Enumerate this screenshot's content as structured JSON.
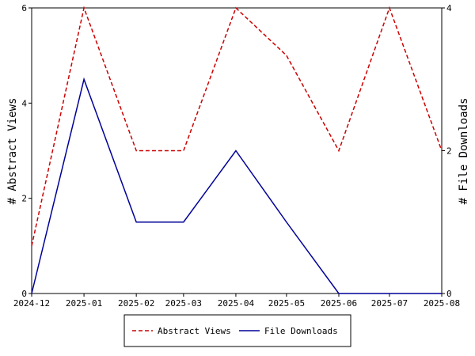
{
  "chart_data": {
    "type": "line",
    "x": [
      "2024-12",
      "2025-01",
      "2025-02",
      "2025-03",
      "2025-04",
      "2025-05",
      "2025-06",
      "2025-07",
      "2025-08"
    ],
    "series": [
      {
        "name": "Abstract Views",
        "color": "#cc0000",
        "dash": true,
        "values": [
          1,
          6,
          3,
          3,
          6,
          5,
          3,
          6,
          3
        ]
      },
      {
        "name": "File Downloads",
        "color": "#000099",
        "axis": "y2",
        "values": [
          0,
          3,
          1,
          1,
          2,
          1,
          0,
          0,
          0
        ]
      }
    ],
    "ylabel": "# Abstract Views",
    "y2label": "# File Downloads",
    "ylim": [
      0,
      6
    ],
    "yticks": [
      0,
      2,
      4,
      6
    ],
    "y2lim": [
      0,
      4
    ],
    "y2ticks": [
      0,
      2,
      4
    ],
    "legend": "bottom"
  }
}
